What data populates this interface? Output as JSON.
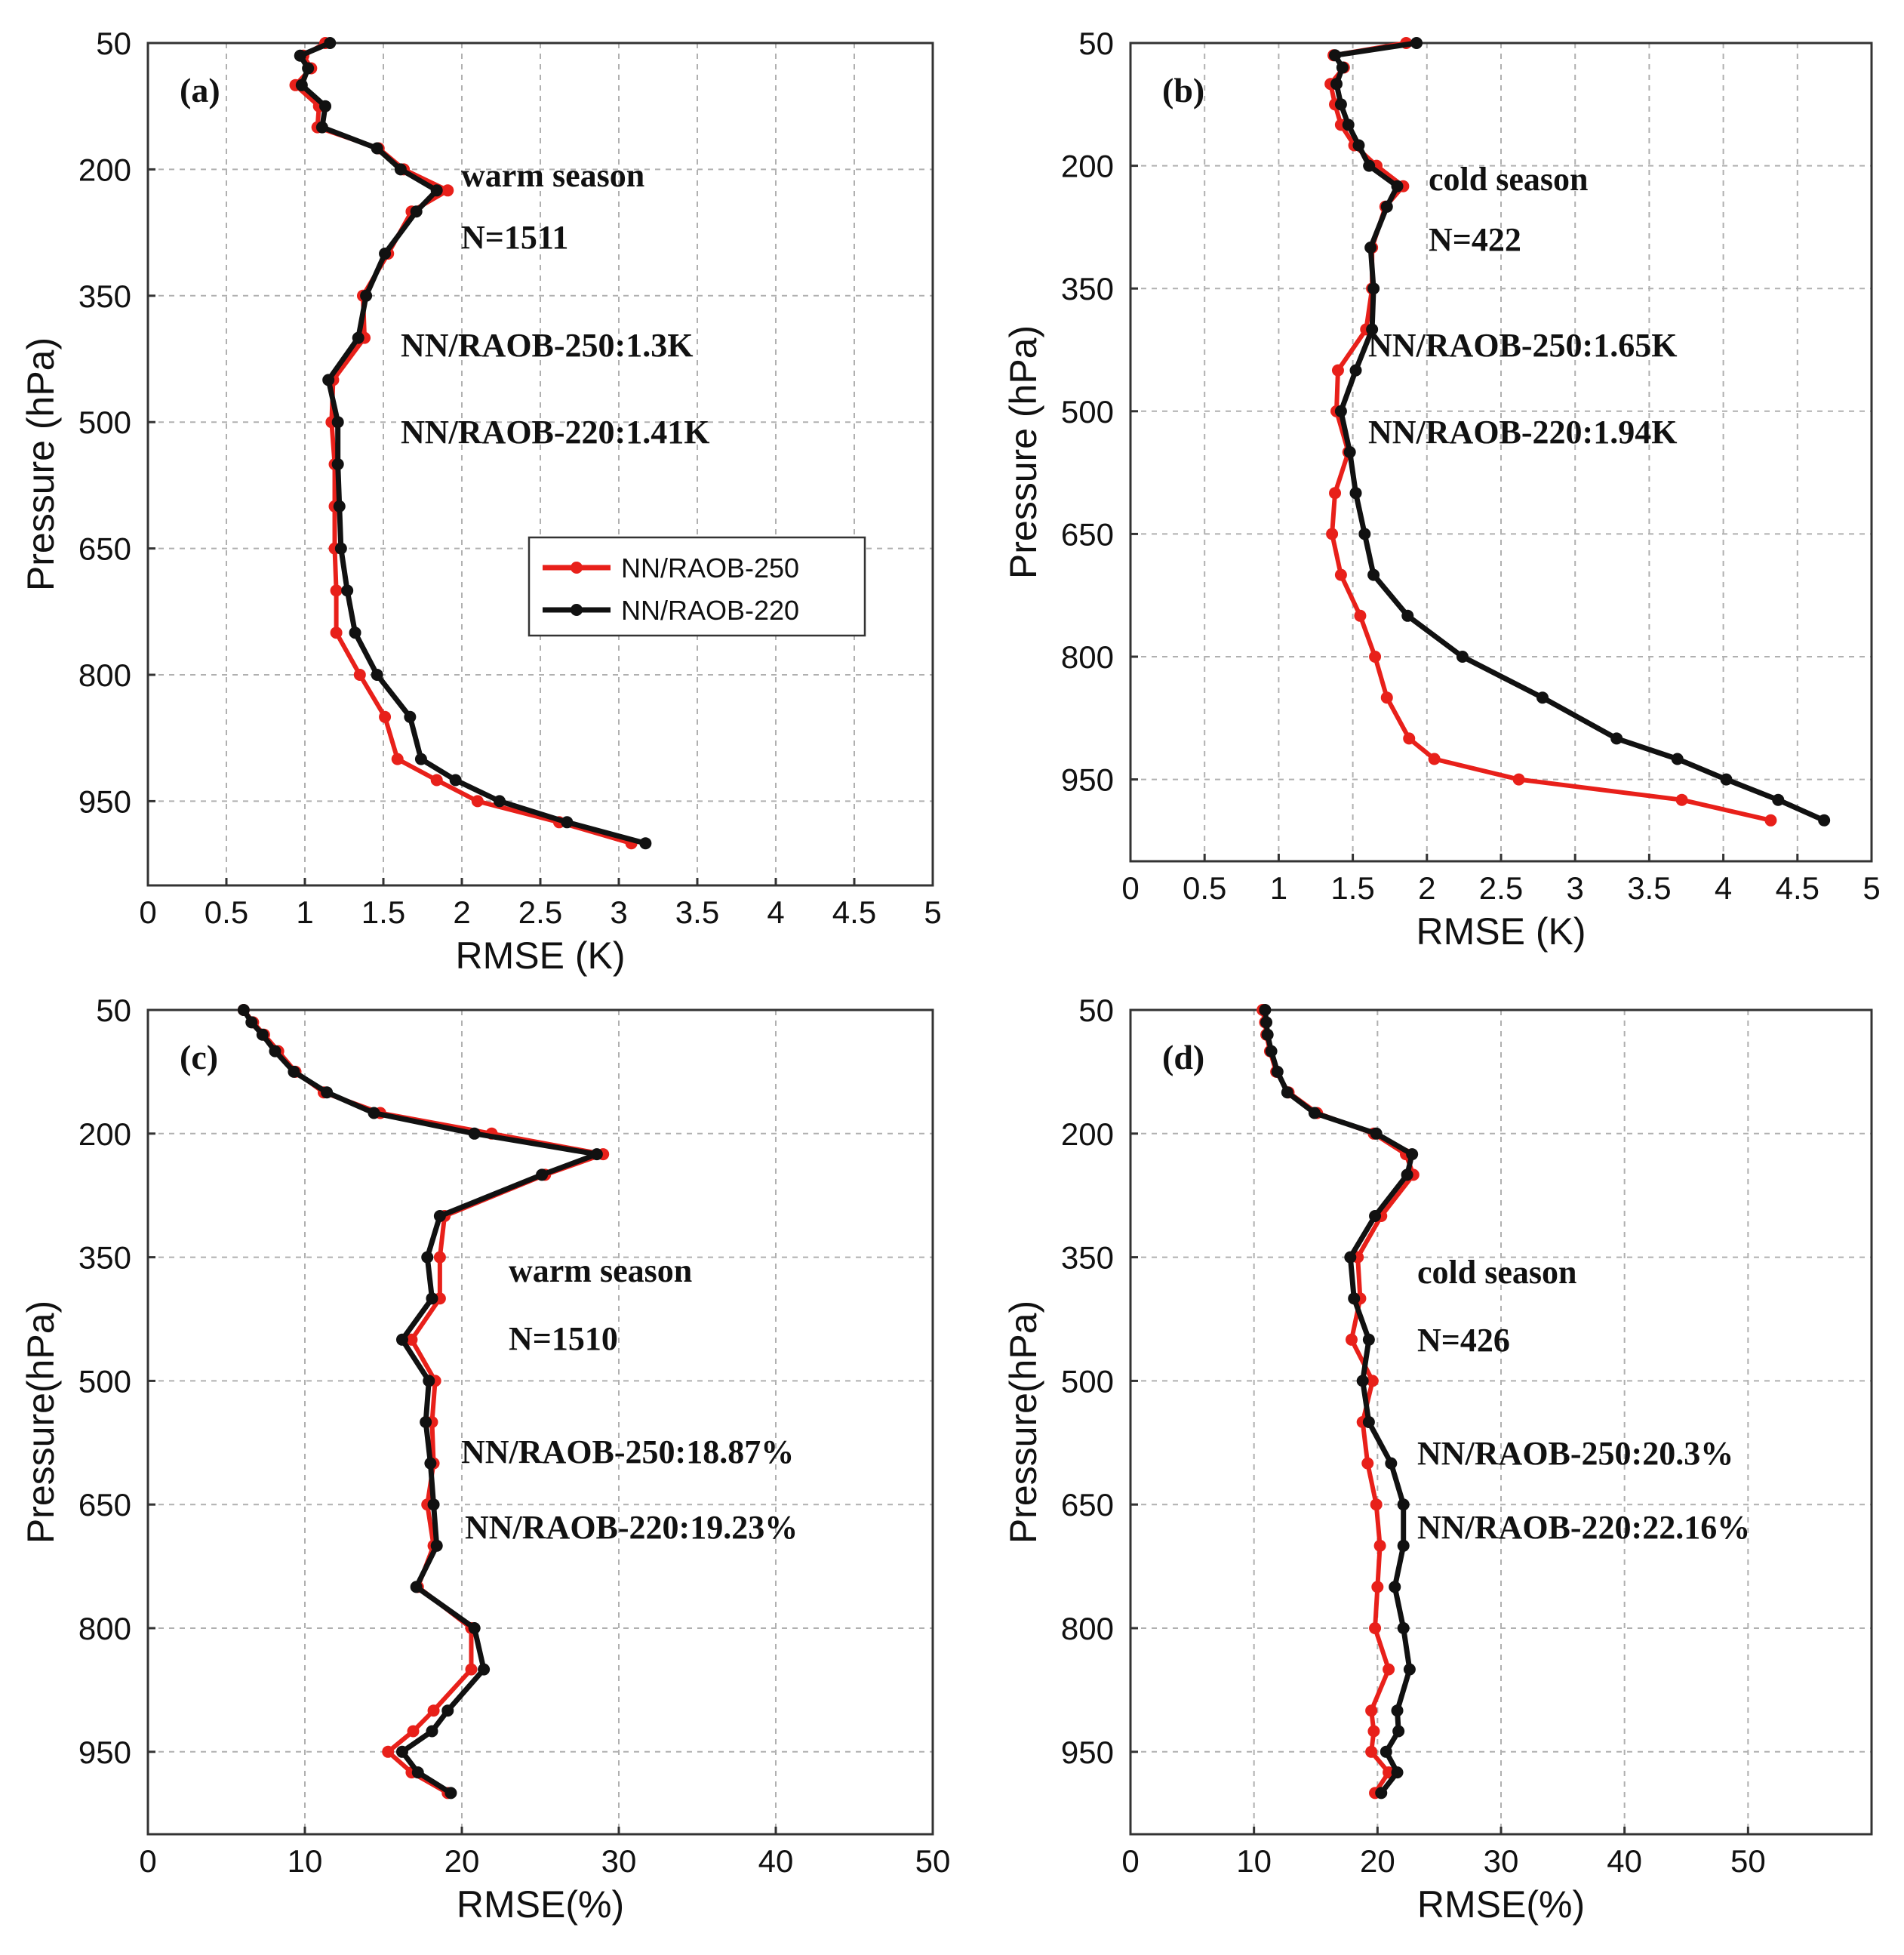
{
  "colors": {
    "s250": "#e8201a",
    "s220": "#111111"
  },
  "legend": {
    "s250": "NN/RAOB-250",
    "s220": "NN/RAOB-220"
  },
  "chart_data": [
    {
      "type": "line",
      "tag": "(a)",
      "xlabel": "RMSE (K)",
      "ylabel": "Pressure (hPa)",
      "xlim": [
        0,
        5
      ],
      "ylim": [
        50,
        1050
      ],
      "xticks": [
        0,
        0.5,
        1,
        1.5,
        2,
        2.5,
        3,
        3.5,
        4,
        4.5,
        5
      ],
      "xtick_labels": [
        "0",
        "0.5",
        "1",
        "1.5",
        "2",
        "2.5",
        "3",
        "3.5",
        "4",
        "4.5",
        "5"
      ],
      "yticks": [
        50,
        200,
        350,
        500,
        650,
        800,
        950
      ],
      "ytick_labels": [
        "50",
        "200",
        "350",
        "500",
        "650",
        "800",
        "950"
      ],
      "notes": [
        "warm season",
        "N=1511",
        "NN/RAOB-250:1.3K",
        "NN/RAOB-220:1.41K"
      ],
      "has_legend": true,
      "pressure": [
        50,
        65,
        80,
        100,
        125,
        150,
        175,
        200,
        225,
        250,
        300,
        350,
        400,
        450,
        500,
        550,
        600,
        650,
        700,
        750,
        800,
        850,
        900,
        925,
        950,
        975,
        1000
      ],
      "series": [
        {
          "key": "s250",
          "name": "NN/RAOB-250",
          "values": [
            1.13,
            0.99,
            1.04,
            0.94,
            1.09,
            1.08,
            1.47,
            1.63,
            1.91,
            1.68,
            1.53,
            1.37,
            1.38,
            1.18,
            1.17,
            1.19,
            1.19,
            1.19,
            1.2,
            1.2,
            1.35,
            1.51,
            1.59,
            1.84,
            2.1,
            2.62,
            3.08
          ]
        },
        {
          "key": "s220",
          "name": "NN/RAOB-220",
          "values": [
            1.16,
            0.97,
            1.02,
            0.98,
            1.13,
            1.11,
            1.46,
            1.61,
            1.84,
            1.71,
            1.51,
            1.39,
            1.34,
            1.15,
            1.21,
            1.21,
            1.22,
            1.23,
            1.27,
            1.32,
            1.46,
            1.67,
            1.74,
            1.96,
            2.24,
            2.67,
            3.17
          ]
        }
      ]
    },
    {
      "type": "line",
      "tag": "(b)",
      "xlabel": "RMSE (K)",
      "ylabel": "Pressure (hPa)",
      "xlim": [
        0,
        5
      ],
      "ylim": [
        50,
        1050
      ],
      "xticks": [
        0,
        0.5,
        1,
        1.5,
        2,
        2.5,
        3,
        3.5,
        4,
        4.5,
        5
      ],
      "xtick_labels": [
        "0",
        "0.5",
        "1",
        "1.5",
        "2",
        "2.5",
        "3",
        "3.5",
        "4",
        "4.5",
        "5"
      ],
      "yticks": [
        50,
        200,
        350,
        500,
        650,
        800,
        950
      ],
      "ytick_labels": [
        "50",
        "200",
        "350",
        "500",
        "650",
        "800",
        "950"
      ],
      "notes": [
        "cold season",
        "N=422",
        "NN/RAOB-250:1.65K",
        "NN/RAOB-220:1.94K"
      ],
      "has_legend": false,
      "pressure": [
        50,
        65,
        80,
        100,
        125,
        150,
        175,
        200,
        225,
        250,
        300,
        350,
        400,
        450,
        500,
        550,
        600,
        650,
        700,
        750,
        800,
        850,
        900,
        925,
        950,
        975,
        1000
      ],
      "series": [
        {
          "key": "s250",
          "name": "NN/RAOB-250",
          "values": [
            1.86,
            1.37,
            1.44,
            1.35,
            1.38,
            1.42,
            1.51,
            1.66,
            1.84,
            1.72,
            1.63,
            1.63,
            1.59,
            1.4,
            1.39,
            1.47,
            1.38,
            1.36,
            1.42,
            1.55,
            1.65,
            1.73,
            1.88,
            2.05,
            2.62,
            3.72,
            4.32
          ]
        },
        {
          "key": "s220",
          "name": "NN/RAOB-220",
          "values": [
            1.93,
            1.38,
            1.43,
            1.39,
            1.42,
            1.47,
            1.54,
            1.61,
            1.8,
            1.73,
            1.62,
            1.64,
            1.63,
            1.52,
            1.42,
            1.48,
            1.52,
            1.58,
            1.64,
            1.87,
            2.24,
            2.78,
            3.28,
            3.69,
            4.02,
            4.37,
            4.68
          ]
        }
      ]
    },
    {
      "type": "line",
      "tag": "(c)",
      "xlabel": "RMSE(%)",
      "ylabel": "Pressure(hPa)",
      "xlim": [
        0,
        50
      ],
      "ylim": [
        50,
        1050
      ],
      "xticks": [
        0,
        10,
        20,
        30,
        40,
        50
      ],
      "xtick_labels": [
        "0",
        "10",
        "20",
        "30",
        "40",
        "50"
      ],
      "yticks": [
        50,
        200,
        350,
        500,
        650,
        800,
        950
      ],
      "ytick_labels": [
        "50",
        "200",
        "350",
        "500",
        "650",
        "800",
        "950"
      ],
      "notes": [
        "warm season",
        "N=1510",
        "NN/RAOB-250:18.87%",
        "NN/RAOB-220:19.23%"
      ],
      "has_legend": false,
      "pressure": [
        50,
        65,
        80,
        100,
        125,
        150,
        175,
        200,
        225,
        250,
        300,
        350,
        400,
        450,
        500,
        550,
        600,
        650,
        700,
        750,
        800,
        850,
        900,
        925,
        950,
        975,
        1000
      ],
      "series": [
        {
          "key": "s250",
          "name": "NN/RAOB-250",
          "values": [
            6.1,
            6.7,
            7.4,
            8.3,
            9.4,
            11.2,
            14.8,
            21.9,
            29.0,
            25.3,
            18.9,
            18.6,
            18.6,
            16.8,
            18.3,
            18.1,
            18.2,
            17.8,
            18.2,
            17.2,
            20.6,
            20.6,
            18.2,
            16.9,
            15.3,
            16.8,
            19.1
          ]
        },
        {
          "key": "s220",
          "name": "NN/RAOB-220",
          "values": [
            6.1,
            6.6,
            7.3,
            8.1,
            9.3,
            11.4,
            14.4,
            20.8,
            28.6,
            25.1,
            18.6,
            17.8,
            18.1,
            16.2,
            17.9,
            17.7,
            18.0,
            18.2,
            18.4,
            17.1,
            20.8,
            21.4,
            19.1,
            18.1,
            16.2,
            17.2,
            19.3
          ]
        }
      ]
    },
    {
      "type": "line",
      "tag": "(d)",
      "xlabel": "RMSE(%)",
      "ylabel": "Pressure(hPa)",
      "xlim": [
        0,
        60
      ],
      "ylim": [
        50,
        1050
      ],
      "xticks": [
        0,
        10,
        20,
        30,
        40,
        50
      ],
      "xtick_labels": [
        "0",
        "10",
        "20",
        "30",
        "40",
        "50"
      ],
      "yticks": [
        50,
        200,
        350,
        500,
        650,
        800,
        950
      ],
      "ytick_labels": [
        "50",
        "200",
        "350",
        "500",
        "650",
        "800",
        "950"
      ],
      "notes": [
        "cold season",
        "N=426",
        "NN/RAOB-250:20.3%",
        "NN/RAOB-220:22.16%"
      ],
      "has_legend": false,
      "pressure": [
        50,
        65,
        80,
        100,
        125,
        150,
        175,
        200,
        225,
        250,
        300,
        350,
        400,
        450,
        500,
        550,
        600,
        650,
        700,
        750,
        800,
        850,
        900,
        925,
        950,
        975,
        1000
      ],
      "series": [
        {
          "key": "s250",
          "name": "NN/RAOB-250",
          "values": [
            10.7,
            10.9,
            11.0,
            11.3,
            11.8,
            12.8,
            15.1,
            19.7,
            22.3,
            22.9,
            20.3,
            18.4,
            18.6,
            17.9,
            19.6,
            18.8,
            19.2,
            19.9,
            20.2,
            20.0,
            19.8,
            20.9,
            19.5,
            19.7,
            19.5,
            20.9,
            19.8
          ]
        },
        {
          "key": "s220",
          "name": "NN/RAOB-220",
          "values": [
            10.9,
            11.0,
            11.1,
            11.4,
            11.9,
            12.7,
            14.9,
            19.9,
            22.8,
            22.4,
            19.8,
            17.8,
            18.1,
            19.3,
            18.8,
            19.3,
            21.1,
            22.1,
            22.1,
            21.4,
            22.1,
            22.6,
            21.6,
            21.7,
            20.7,
            21.6,
            20.3
          ]
        }
      ]
    }
  ]
}
